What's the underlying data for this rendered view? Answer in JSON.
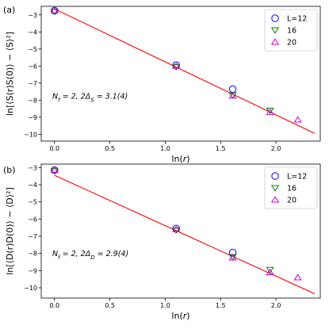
{
  "chart_data": [
    {
      "type": "scatter",
      "panel_label": "(a)",
      "xlabel": "ln(r)",
      "ylabel": "ln[⟨S(r)S(0)⟩ − ⟨S⟩²]",
      "xlim": [
        -0.12,
        2.4
      ],
      "ylim": [
        -10.4,
        -2.5
      ],
      "xticks": [
        0.0,
        0.5,
        1.0,
        1.5,
        2.0
      ],
      "xtick_labels": [
        "0.0",
        "0.5",
        "1.0",
        "1.5",
        "2.0"
      ],
      "yticks": [
        -3,
        -4,
        -5,
        -6,
        -7,
        -8,
        -9,
        -10
      ],
      "ytick_labels": [
        "−3",
        "−4",
        "−5",
        "−6",
        "−7",
        "−8",
        "−9",
        "−10"
      ],
      "annotation": "N_f = 2,  2Δ_S = 3.1(4)",
      "legend_position": "top-right",
      "fit_line": {
        "x": [
          0.0,
          2.35
        ],
        "y": [
          -2.65,
          -9.95
        ],
        "color": "#ff0000"
      },
      "series": [
        {
          "name": "L=12",
          "marker": "circle",
          "color": "#0000ff",
          "x": [
            0.0,
            1.0986,
            1.6094
          ],
          "y": [
            -2.75,
            -5.95,
            -7.35
          ]
        },
        {
          "name": "16",
          "marker": "triangle-down",
          "color": "#008000",
          "x": [
            0.0,
            1.0986,
            1.6094,
            1.9459
          ],
          "y": [
            -2.8,
            -6.05,
            -7.7,
            -8.6
          ]
        },
        {
          "name": "20",
          "marker": "triangle-up",
          "color": "#cc00cc",
          "x": [
            0.0,
            1.0986,
            1.6094,
            1.9459,
            2.1972
          ],
          "y": [
            -2.75,
            -6.0,
            -7.75,
            -8.7,
            -9.15
          ]
        }
      ]
    },
    {
      "type": "scatter",
      "panel_label": "(b)",
      "xlabel": "ln(r)",
      "ylabel": "ln[⟨D(r)D(0)⟩ − ⟨D⟩²]",
      "xlim": [
        -0.12,
        2.4
      ],
      "ylim": [
        -10.6,
        -2.8
      ],
      "xticks": [
        0.0,
        0.5,
        1.0,
        1.5,
        2.0
      ],
      "xtick_labels": [
        "0.0",
        "0.5",
        "1.0",
        "1.5",
        "2.0"
      ],
      "yticks": [
        -3,
        -4,
        -5,
        -6,
        -7,
        -8,
        -9,
        -10
      ],
      "ytick_labels": [
        "−3",
        "−4",
        "−5",
        "−6",
        "−7",
        "−8",
        "−9",
        "−10"
      ],
      "annotation": "N_f = 2,  2Δ_D = 2.9(4)",
      "legend_position": "top-right",
      "fit_line": {
        "x": [
          0.0,
          2.35
        ],
        "y": [
          -3.45,
          -10.35
        ],
        "color": "#ff0000"
      },
      "series": [
        {
          "name": "L=12",
          "marker": "circle",
          "color": "#0000ff",
          "x": [
            0.0,
            1.0986,
            1.6094
          ],
          "y": [
            -3.15,
            -6.55,
            -7.95
          ]
        },
        {
          "name": "16",
          "marker": "triangle-down",
          "color": "#008000",
          "x": [
            0.0,
            1.0986,
            1.6094,
            1.9459
          ],
          "y": [
            -3.2,
            -6.65,
            -8.2,
            -8.95
          ]
        },
        {
          "name": "20",
          "marker": "triangle-up",
          "color": "#cc00cc",
          "x": [
            0.0,
            1.0986,
            1.6094,
            1.9459,
            2.1972
          ],
          "y": [
            -3.15,
            -6.6,
            -8.25,
            -9.1,
            -9.4
          ]
        }
      ]
    }
  ]
}
